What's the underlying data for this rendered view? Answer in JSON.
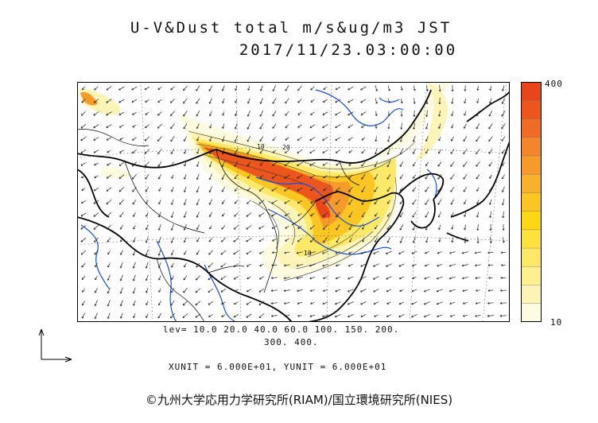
{
  "title": {
    "line1": "U-V&Dust total m/s&ug/m3 JST",
    "line2": "2017/11/23.03:00:00"
  },
  "colorbar": {
    "max_label": "400",
    "min_label": "10",
    "colors": [
      "#fdfbe0",
      "#fdf5b8",
      "#fdf08f",
      "#fde967",
      "#fde23e",
      "#fdd614",
      "#fbc522",
      "#f9b12b",
      "#f69b2a",
      "#f3852a",
      "#f06c22",
      "#ec561c",
      "#e8461a"
    ]
  },
  "levels": {
    "line1": "lev= 10.0 20.0 40.0 60.0 100. 150. 200.",
    "line2": "300. 400."
  },
  "units_text": "XUNIT = 6.000E+01, YUNIT = 6.000E+01",
  "credit": "©九州大学応用力学研究所(RIAM)/国立環境研究所(NIES)",
  "map_features": {
    "coastline_color": "#000000",
    "river_color": "#1a4fd8",
    "wind_vector_color": "#222222",
    "grid_line_style": "dotted"
  }
}
